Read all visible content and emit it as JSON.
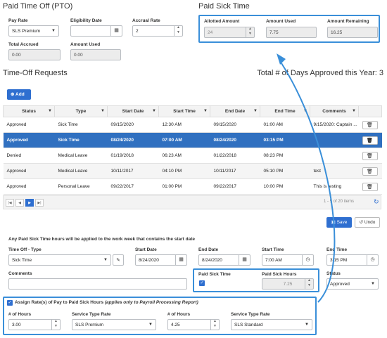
{
  "pto": {
    "title": "Paid Time Off (PTO)",
    "pay_rate_label": "Pay Rate",
    "pay_rate_value": "SLS Premium",
    "eligibility_label": "Eligibility Date",
    "eligibility_value": "",
    "accrual_label": "Accrual Rate",
    "accrual_value": "2",
    "total_accrued_label": "Total Accrued",
    "total_accrued_value": "0.00",
    "amount_used_label": "Amount Used",
    "amount_used_value": "0.00"
  },
  "sick": {
    "title": "Paid Sick Time",
    "allotted_label": "Allotted Amount",
    "allotted_value": "24",
    "used_label": "Amount Used",
    "used_value": "7.75",
    "remaining_label": "Amount Remaining",
    "remaining_value": "16.25"
  },
  "requests": {
    "title": "Time-Off Requests",
    "days_approved": "Total # of Days Approved this Year: 3",
    "add_label": "Add",
    "columns": [
      "Status",
      "Type",
      "Start Date",
      "Start Time",
      "End Date",
      "End Time",
      "Comments",
      ""
    ],
    "rows": [
      {
        "status": "Approved",
        "type": "Sick Time",
        "start_date": "09/15/2020",
        "start_time": "12:30 AM",
        "end_date": "09/15/2020",
        "end_time": "01:00 AM",
        "comments": "9/15/2020: Captain ..."
      },
      {
        "status": "Approved",
        "type": "Sick Time",
        "start_date": "08/24/2020",
        "start_time": "07:00 AM",
        "end_date": "08/24/2020",
        "end_time": "03:15 PM",
        "comments": ""
      },
      {
        "status": "Denied",
        "type": "Medical Leave",
        "start_date": "01/19/2018",
        "start_time": "06:23 AM",
        "end_date": "01/22/2018",
        "end_time": "08:23 PM",
        "comments": ""
      },
      {
        "status": "Approved",
        "type": "Medical Leave",
        "start_date": "10/11/2017",
        "start_time": "04:10 PM",
        "end_date": "10/11/2017",
        "end_time": "05:10 PM",
        "comments": "test"
      },
      {
        "status": "Approved",
        "type": "Personal Leave",
        "start_date": "09/22/2017",
        "start_time": "01:00 PM",
        "end_date": "09/22/2017",
        "end_time": "10:00 PM",
        "comments": "This is testing"
      }
    ],
    "pager_info": "1 - 5 of 20 items"
  },
  "edit": {
    "save_label": "Save",
    "undo_label": "Undo",
    "note": "Any Paid Sick Time hours will be applied to the work week that contains the start date",
    "type_label": "Time Off - Type",
    "type_value": "Sick Time",
    "start_date_label": "Start Date",
    "start_date_value": "8/24/2020",
    "end_date_label": "End Date",
    "end_date_value": "8/24/2020",
    "start_time_label": "Start Time",
    "start_time_value": "7:00 AM",
    "end_time_label": "End Time",
    "end_time_value": "3:15 PM",
    "comments_label": "Comments",
    "comments_value": "",
    "paid_sick_label": "Paid Sick Time",
    "paid_sick_hours_label": "Paid Sick Hours",
    "paid_sick_hours_value": "7.25",
    "status_label": "Status",
    "status_value": "Approved",
    "assign_label": "Assign Rate(s) of Pay to Paid Sick Hours",
    "assign_note": "(applies only to Payroll Processing Report)",
    "hours1_label": "# of Hours",
    "hours1_value": "3.00",
    "service1_label": "Service Type Rate",
    "service1_value": "SLS Premium",
    "hours2_label": "# of Hours",
    "hours2_value": "4.25",
    "service2_label": "Service Type Rate",
    "service2_value": "SLS Standard"
  },
  "colors": {
    "accent": "#3a8fd9",
    "selected_row": "#3070c0",
    "primary_button": "#2f6fd0"
  }
}
